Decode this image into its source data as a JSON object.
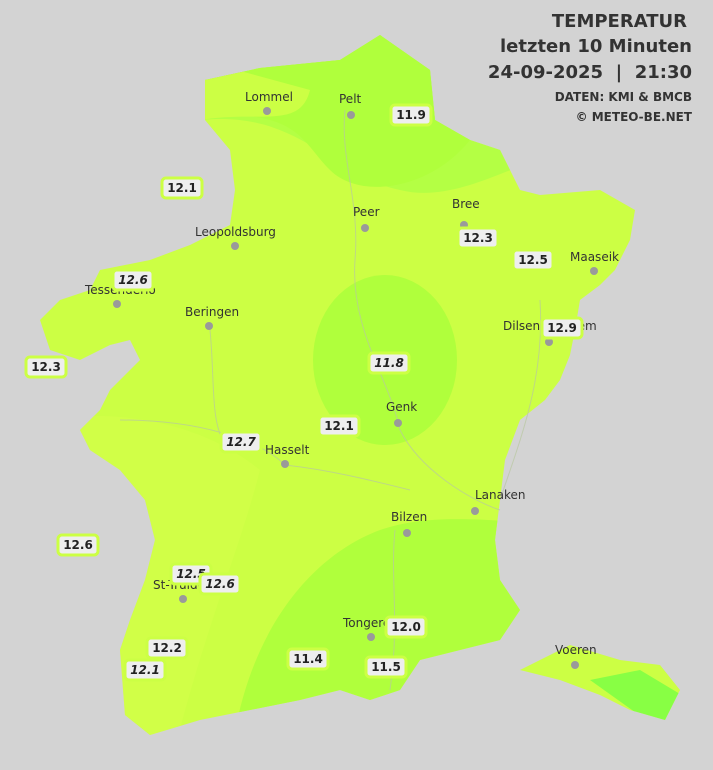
{
  "header": {
    "title": "TEMPERATUR",
    "subtitle": "letzten 10 Minuten",
    "datetime": "24-09-2025  |  21:30",
    "source": "DATEN: KMI & BMCB",
    "credit": "© METEO-BE.NET"
  },
  "towns": [
    "Lommel",
    "Pelt",
    "Peer",
    "Bree",
    "Leopoldsburg",
    "Maaseik",
    "Tessenderlo",
    "Beringen",
    "Dilsen-Stokkem",
    "Genk",
    "Hasselt",
    "Lanaken",
    "Bilzen",
    "St-Truiden",
    "Tongeren",
    "Voeren"
  ],
  "readings": [
    {
      "label": "11.9",
      "italic": false
    },
    {
      "label": "12.1",
      "italic": false
    },
    {
      "label": "12.3",
      "italic": false
    },
    {
      "label": "12.5",
      "italic": false
    },
    {
      "label": "12.6",
      "italic": true
    },
    {
      "label": "12.9",
      "italic": false
    },
    {
      "label": "12.3",
      "italic": false
    },
    {
      "label": "11.8",
      "italic": true
    },
    {
      "label": "12.1",
      "italic": false
    },
    {
      "label": "12.7",
      "italic": true
    },
    {
      "label": "12.6",
      "italic": false
    },
    {
      "label": "12.5",
      "italic": true
    },
    {
      "label": "12.6",
      "italic": true
    },
    {
      "label": "12.2",
      "italic": false
    },
    {
      "label": "12.1",
      "italic": true
    },
    {
      "label": "12.0",
      "italic": false
    },
    {
      "label": "11.4",
      "italic": false
    },
    {
      "label": "11.5",
      "italic": false
    }
  ]
}
